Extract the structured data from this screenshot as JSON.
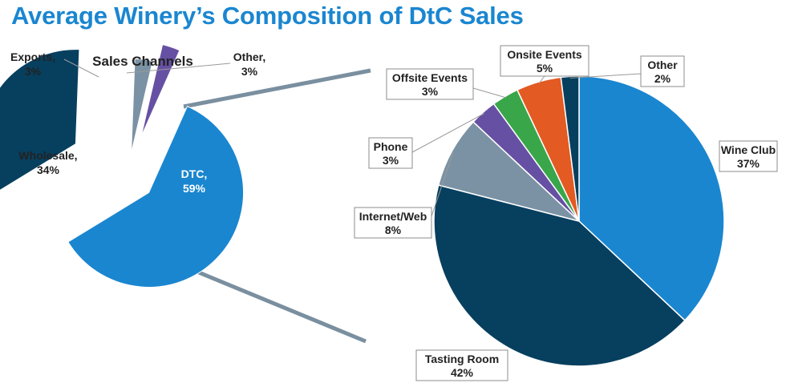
{
  "title": "Average Winery’s Composition of DtC Sales",
  "chart_data": [
    {
      "type": "pie",
      "title": "Sales Channels",
      "slices": [
        {
          "label": "DTC,",
          "pct_label": "59%",
          "value": 59,
          "color": "#1a86d0"
        },
        {
          "label": "Wholesale,",
          "pct_label": "34%",
          "value": 34,
          "color": "#073f5f"
        },
        {
          "label": "Exports,",
          "pct_label": "3%",
          "value": 3,
          "color": "#7a92a4"
        },
        {
          "label": "Other,",
          "pct_label": "3%",
          "value": 3,
          "color": "#6650a3"
        }
      ]
    },
    {
      "type": "pie",
      "title": "",
      "slices": [
        {
          "label": "Wine Club",
          "pct_label": "37%",
          "value": 37,
          "color": "#1a86d0"
        },
        {
          "label": "Tasting Room",
          "pct_label": "42%",
          "value": 42,
          "color": "#073f5f"
        },
        {
          "label": "Internet/Web",
          "pct_label": "8%",
          "value": 8,
          "color": "#7a92a4"
        },
        {
          "label": "Phone",
          "pct_label": "3%",
          "value": 3,
          "color": "#6650a3"
        },
        {
          "label": "Offsite Events",
          "pct_label": "3%",
          "value": 3,
          "color": "#3aa64a"
        },
        {
          "label": "Onsite Events",
          "pct_label": "5%",
          "value": 5,
          "color": "#e35a22"
        },
        {
          "label": "Other",
          "pct_label": "2%",
          "value": 2,
          "color": "#073f5f"
        }
      ]
    }
  ],
  "connector_color": "#7a8f9f"
}
